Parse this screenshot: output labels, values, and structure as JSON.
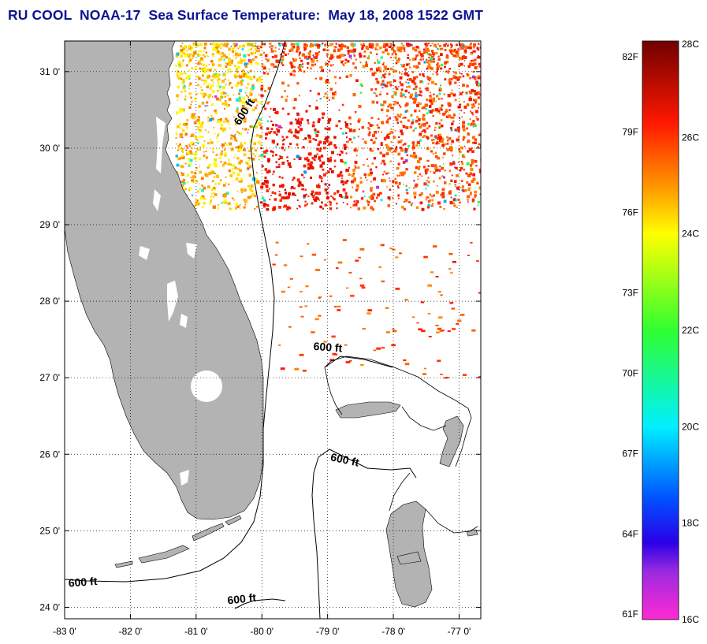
{
  "title": "RU COOL  NOAA-17  Sea Surface Temperature:  May 18, 2008 1522 GMT",
  "colors": {
    "title": "#0c1390",
    "land": "#b3b3b3",
    "ocean": "#ffffff",
    "grid": "#000000"
  },
  "map": {
    "lon_range": [
      -83,
      -76.67
    ],
    "lat_range": [
      23.85,
      31.4
    ],
    "lon_ticks": [
      {
        "value": -83,
        "label": "-83 0'"
      },
      {
        "value": -82,
        "label": "-82 0'"
      },
      {
        "value": -81,
        "label": "-81 0'"
      },
      {
        "value": -80,
        "label": "-80 0'"
      },
      {
        "value": -79,
        "label": "-79 0'"
      },
      {
        "value": -78,
        "label": "-78 0'"
      },
      {
        "value": -77,
        "label": "-77 0'"
      }
    ],
    "lat_ticks": [
      {
        "value": 31,
        "label": "31 0'"
      },
      {
        "value": 30,
        "label": "30 0'"
      },
      {
        "value": 29,
        "label": "29 0'"
      },
      {
        "value": 28,
        "label": "28 0'"
      },
      {
        "value": 27,
        "label": "27 0'"
      },
      {
        "value": 26,
        "label": "26 0'"
      },
      {
        "value": 25,
        "label": "25 0'"
      },
      {
        "value": 24,
        "label": "24 0'"
      }
    ],
    "contour_labels": [
      {
        "text": "600 ft",
        "lon": -80.22,
        "lat": 30.45,
        "rotate": -58
      },
      {
        "text": "600 ft",
        "lon": -79.0,
        "lat": 27.35,
        "rotate": 4
      },
      {
        "text": "600 ft",
        "lon": -78.75,
        "lat": 25.88,
        "rotate": 12
      },
      {
        "text": "600 ft",
        "lon": -82.72,
        "lat": 24.28,
        "rotate": -4
      },
      {
        "text": "600 ft",
        "lon": -80.3,
        "lat": 24.06,
        "rotate": -6
      }
    ]
  },
  "colorbar": {
    "celsius_range": [
      16,
      28
    ],
    "fahrenheit_labels": [
      "82F",
      "79F",
      "76F",
      "73F",
      "70F",
      "67F",
      "64F",
      "61F"
    ],
    "fahrenheit_values": [
      82,
      79,
      76,
      73,
      70,
      67,
      64,
      61
    ],
    "celsius_labels": [
      "28C",
      "26C",
      "24C",
      "22C",
      "20C",
      "18C",
      "16C"
    ],
    "celsius_values": [
      28,
      26,
      24,
      22,
      20,
      18,
      16
    ],
    "stops": [
      {
        "c": 16.0,
        "color": "#ff2ad4"
      },
      {
        "c": 17.0,
        "color": "#9a2ae0"
      },
      {
        "c": 17.6,
        "color": "#2a00e8"
      },
      {
        "c": 18.5,
        "color": "#0050ff"
      },
      {
        "c": 20.0,
        "color": "#00f0ff"
      },
      {
        "c": 22.0,
        "color": "#30ff30"
      },
      {
        "c": 24.0,
        "color": "#ffff00"
      },
      {
        "c": 25.0,
        "color": "#ff9500"
      },
      {
        "c": 26.3,
        "color": "#ff1800"
      },
      {
        "c": 28.0,
        "color": "#700000"
      }
    ]
  }
}
